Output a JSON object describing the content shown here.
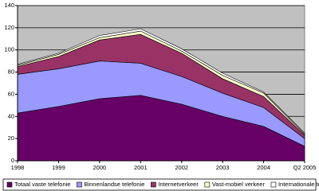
{
  "chart_data": {
    "type": "stacked-area",
    "categories": [
      "1998",
      "1999",
      "2000",
      "2001",
      "2002",
      "2003",
      "2004",
      "Q2 2005"
    ],
    "series": [
      {
        "name": "Totaal vaste telefonie",
        "color": "#660066",
        "values": [
          43,
          49,
          56,
          59,
          51,
          40,
          31,
          13
        ]
      },
      {
        "name": "Binnenlandse telefonie",
        "color": "#9999ff",
        "values": [
          35,
          34,
          34,
          29,
          25,
          21,
          17,
          7
        ]
      },
      {
        "name": "Internetverkeer",
        "color": "#993366",
        "values": [
          7,
          11,
          19,
          26,
          21,
          13,
          10,
          3
        ]
      },
      {
        "name": "Vast-mobiel verkeer",
        "color": "#ffffcc",
        "values": [
          1,
          2,
          2,
          3,
          2,
          3,
          3,
          1
        ]
      },
      {
        "name": "Internationale telefonie",
        "color": "#ffffff",
        "values": [
          1,
          1,
          2,
          2,
          2,
          2,
          1,
          1
        ]
      }
    ],
    "ylim": [
      0,
      140
    ],
    "yticks": [
      0,
      20,
      40,
      60,
      80,
      100,
      120,
      140
    ],
    "grid": true,
    "legend": "bottom"
  }
}
